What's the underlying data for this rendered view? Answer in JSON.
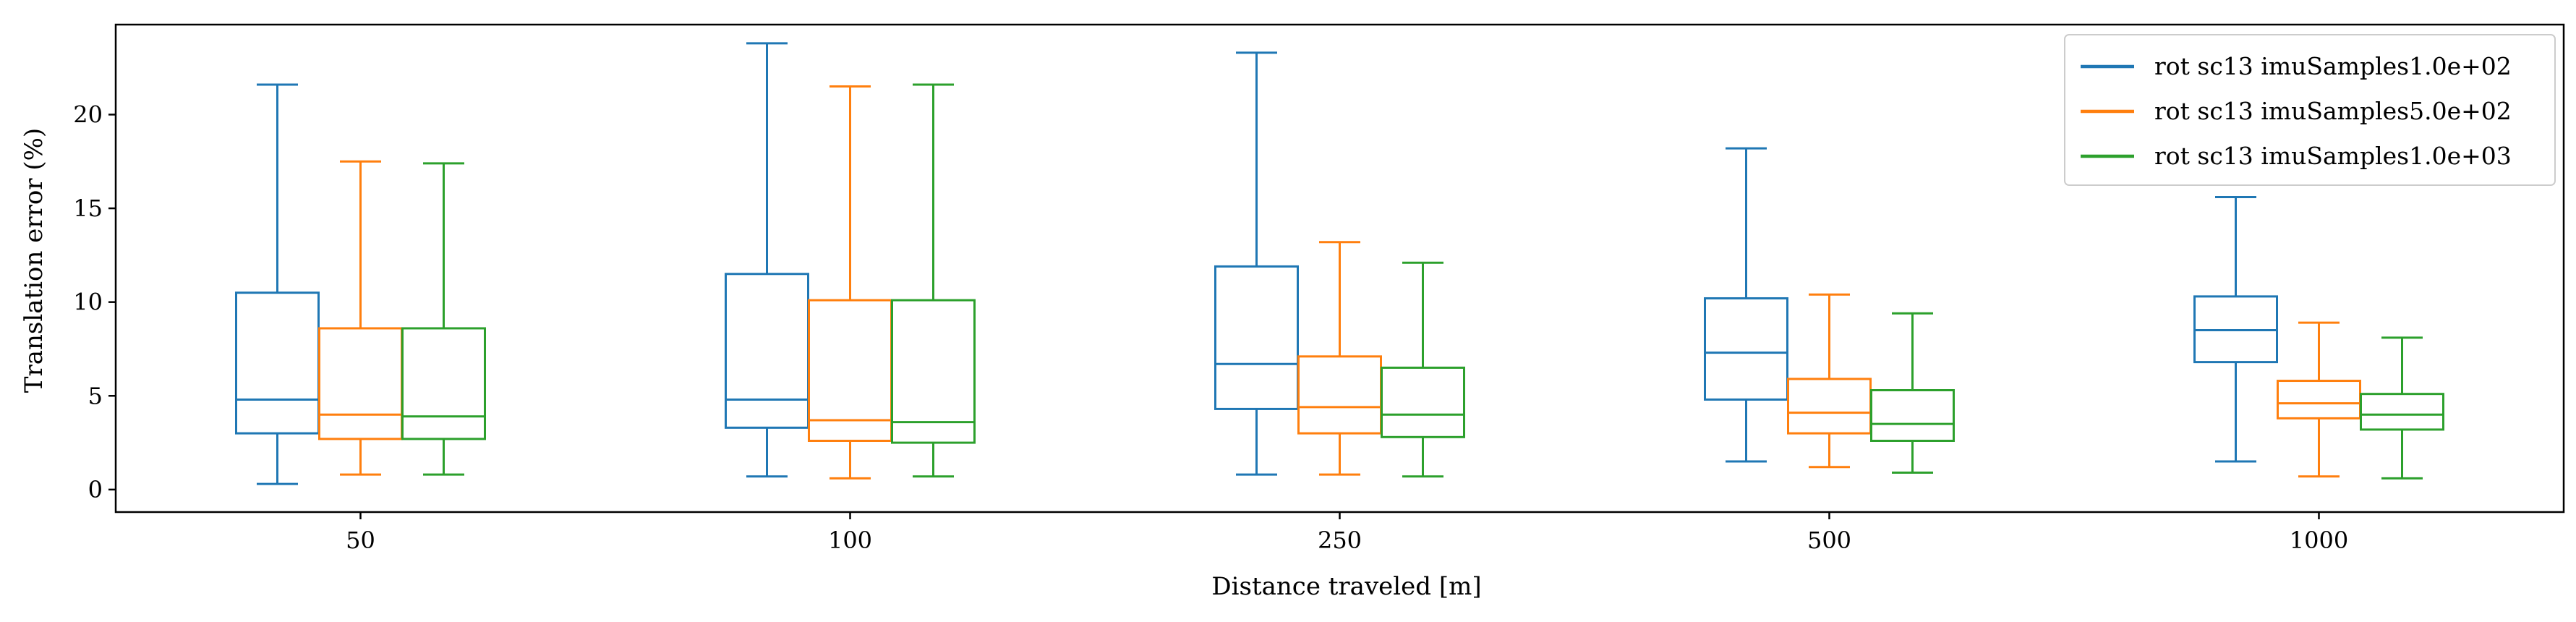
{
  "chart_data": {
    "type": "box",
    "title": "",
    "xlabel": "Distance traveled [m]",
    "ylabel": "Translation error (%)",
    "ylim": [
      -1.2,
      24.8
    ],
    "yticks": [
      0,
      5,
      10,
      15,
      20
    ],
    "categories": [
      "50",
      "100",
      "250",
      "500",
      "1000"
    ],
    "legend_position": "top-right",
    "grid": false,
    "series": [
      {
        "name": "rot sc13 imuSamples1.0e+02",
        "color": "#1f77b4",
        "boxes": [
          {
            "whisker_low": 0.3,
            "q1": 3.0,
            "median": 4.8,
            "q3": 10.5,
            "whisker_high": 21.6
          },
          {
            "whisker_low": 0.7,
            "q1": 3.3,
            "median": 4.8,
            "q3": 11.5,
            "whisker_high": 23.8
          },
          {
            "whisker_low": 0.8,
            "q1": 4.3,
            "median": 6.7,
            "q3": 11.9,
            "whisker_high": 23.3
          },
          {
            "whisker_low": 1.5,
            "q1": 4.8,
            "median": 7.3,
            "q3": 10.2,
            "whisker_high": 18.2
          },
          {
            "whisker_low": 1.5,
            "q1": 6.8,
            "median": 8.5,
            "q3": 10.3,
            "whisker_high": 15.6
          }
        ]
      },
      {
        "name": "rot sc13 imuSamples5.0e+02",
        "color": "#ff7f0e",
        "boxes": [
          {
            "whisker_low": 0.8,
            "q1": 2.7,
            "median": 4.0,
            "q3": 8.6,
            "whisker_high": 17.5
          },
          {
            "whisker_low": 0.6,
            "q1": 2.6,
            "median": 3.7,
            "q3": 10.1,
            "whisker_high": 21.5
          },
          {
            "whisker_low": 0.8,
            "q1": 3.0,
            "median": 4.4,
            "q3": 7.1,
            "whisker_high": 13.2
          },
          {
            "whisker_low": 1.2,
            "q1": 3.0,
            "median": 4.1,
            "q3": 5.9,
            "whisker_high": 10.4
          },
          {
            "whisker_low": 0.7,
            "q1": 3.8,
            "median": 4.6,
            "q3": 5.8,
            "whisker_high": 8.9
          }
        ]
      },
      {
        "name": "rot sc13 imuSamples1.0e+03",
        "color": "#2ca02c",
        "boxes": [
          {
            "whisker_low": 0.8,
            "q1": 2.7,
            "median": 3.9,
            "q3": 8.6,
            "whisker_high": 17.4
          },
          {
            "whisker_low": 0.7,
            "q1": 2.5,
            "median": 3.6,
            "q3": 10.1,
            "whisker_high": 21.6
          },
          {
            "whisker_low": 0.7,
            "q1": 2.8,
            "median": 4.0,
            "q3": 6.5,
            "whisker_high": 12.1
          },
          {
            "whisker_low": 0.9,
            "q1": 2.6,
            "median": 3.5,
            "q3": 5.3,
            "whisker_high": 9.4
          },
          {
            "whisker_low": 0.6,
            "q1": 3.2,
            "median": 4.0,
            "q3": 5.1,
            "whisker_high": 8.1
          }
        ]
      }
    ]
  }
}
